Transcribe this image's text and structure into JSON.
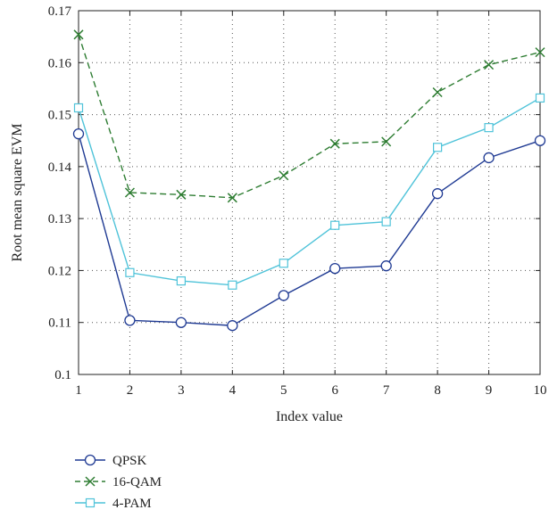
{
  "chart_data": {
    "type": "line",
    "xlabel": "Index value",
    "ylabel": "Root mean square EVM",
    "xlim": [
      1,
      10
    ],
    "ylim": [
      0.1,
      0.17
    ],
    "x": [
      1,
      2,
      3,
      4,
      5,
      6,
      7,
      8,
      9,
      10
    ],
    "x_ticks": [
      "1",
      "2",
      "3",
      "4",
      "5",
      "6",
      "7",
      "8",
      "9",
      "10"
    ],
    "y_ticks": [
      0.1,
      0.11,
      0.12,
      0.13,
      0.14,
      0.15,
      0.16,
      0.17
    ],
    "y_tick_labels": [
      "0.1",
      "0.11",
      "0.12",
      "0.13",
      "0.14",
      "0.15",
      "0.16",
      "0.17"
    ],
    "grid": true,
    "legend_position": "bottom-left, below plot",
    "series": [
      {
        "name": "QPSK",
        "color": "#1f3a93",
        "line_style": "solid",
        "marker": "circle",
        "values": [
          0.1463,
          0.1104,
          0.11,
          0.1094,
          0.1152,
          0.1204,
          0.1209,
          0.1348,
          0.1417,
          0.145
        ]
      },
      {
        "name": "16-QAM",
        "color": "#2e7d32",
        "line_style": "dashed",
        "marker": "x",
        "values": [
          0.1654,
          0.135,
          0.1346,
          0.134,
          0.1383,
          0.1444,
          0.1448,
          0.1543,
          0.1596,
          0.162
        ]
      },
      {
        "name": "4-PAM",
        "color": "#4fc3d9",
        "line_style": "solid",
        "marker": "square",
        "values": [
          0.1513,
          0.1196,
          0.118,
          0.1172,
          0.1214,
          0.1287,
          0.1294,
          0.1437,
          0.1475,
          0.1532
        ]
      }
    ]
  }
}
